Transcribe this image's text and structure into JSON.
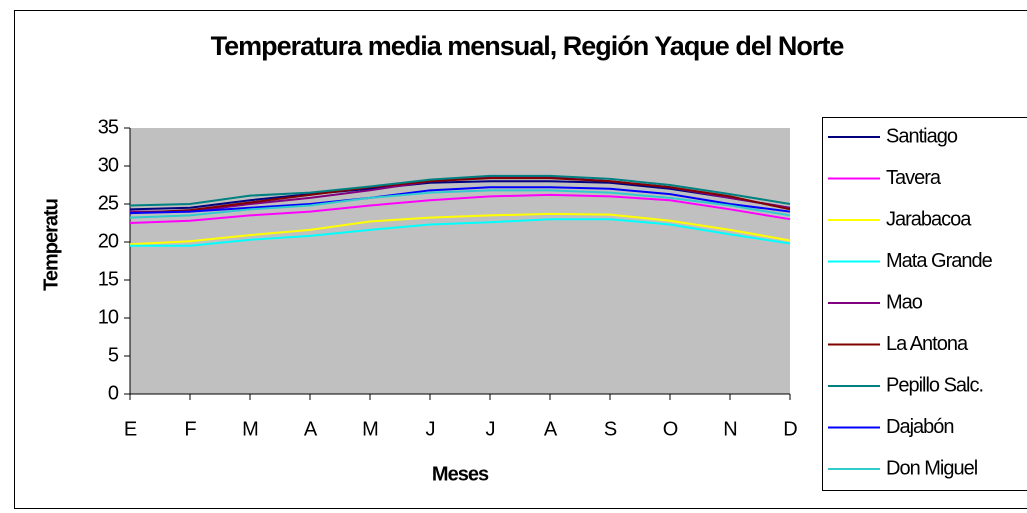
{
  "chart_data": {
    "type": "line",
    "title": "Temperatura media mensual, Región Yaque del Norte",
    "x_label": "Meses",
    "y_label": "Temperatu",
    "categories": [
      "E",
      "F",
      "M",
      "A",
      "M",
      "J",
      "J",
      "A",
      "S",
      "O",
      "N",
      "D"
    ],
    "ylim": [
      0,
      35
    ],
    "yticks": [
      0,
      5,
      10,
      15,
      20,
      25,
      30,
      35
    ],
    "grid": false,
    "legend": "right",
    "series": [
      {
        "name": "Santiago",
        "color": "#000080",
        "values": [
          24.3,
          24.5,
          25.5,
          26.3,
          27,
          27.8,
          28,
          28,
          27.8,
          27,
          25.8,
          24.5
        ]
      },
      {
        "name": "Tavera",
        "color": "#ff00ff",
        "values": [
          22.5,
          22.8,
          23.5,
          24,
          24.8,
          25.5,
          26,
          26.2,
          26,
          25.5,
          24.3,
          23
        ]
      },
      {
        "name": "Jarabacoa",
        "color": "#ffff00",
        "values": [
          19.7,
          20.1,
          20.9,
          21.6,
          22.7,
          23.2,
          23.5,
          23.7,
          23.6,
          22.8,
          21.6,
          20.2
        ]
      },
      {
        "name": "Mata Grande",
        "color": "#00ffff",
        "values": [
          19.5,
          19.5,
          20.3,
          20.8,
          21.6,
          22.3,
          22.6,
          23,
          23,
          22.3,
          21,
          19.8
        ]
      },
      {
        "name": "Mao",
        "color": "#800080",
        "values": [
          24,
          24,
          25,
          25.8,
          26.8,
          28,
          28.5,
          28.5,
          28,
          27.2,
          25.8,
          24.5
        ]
      },
      {
        "name": "La Antona",
        "color": "#800000",
        "values": [
          23.8,
          24.2,
          25.2,
          26.2,
          27.2,
          28,
          28.4,
          28.4,
          28,
          27.2,
          26,
          24.3
        ]
      },
      {
        "name": "Pepillo Salc.",
        "color": "#008080",
        "values": [
          24.8,
          25,
          26.1,
          26.5,
          27.3,
          28.2,
          28.7,
          28.7,
          28.3,
          27.5,
          26.3,
          25
        ]
      },
      {
        "name": "Dajabón",
        "color": "#0000ff",
        "values": [
          23.8,
          24,
          24.5,
          25,
          25.8,
          26.8,
          27.2,
          27.2,
          27,
          26.3,
          25,
          24
        ]
      },
      {
        "name": "Don Miguel",
        "color": "#33cccc",
        "values": [
          23.2,
          23.5,
          24.3,
          24.8,
          25.8,
          26.5,
          26.8,
          26.8,
          26.5,
          25.8,
          24.8,
          23.5
        ]
      }
    ]
  }
}
